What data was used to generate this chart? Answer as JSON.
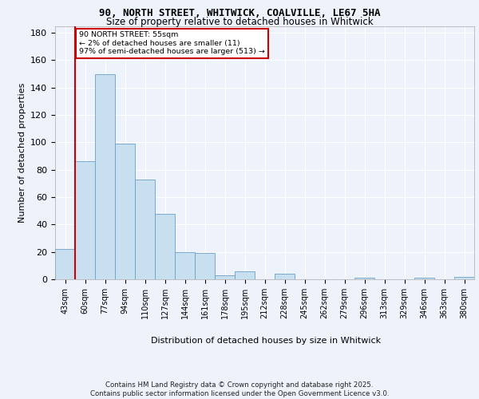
{
  "title1": "90, NORTH STREET, WHITWICK, COALVILLE, LE67 5HA",
  "title2": "Size of property relative to detached houses in Whitwick",
  "xlabel": "Distribution of detached houses by size in Whitwick",
  "ylabel": "Number of detached properties",
  "bin_labels": [
    "43sqm",
    "60sqm",
    "77sqm",
    "94sqm",
    "110sqm",
    "127sqm",
    "144sqm",
    "161sqm",
    "178sqm",
    "195sqm",
    "212sqm",
    "228sqm",
    "245sqm",
    "262sqm",
    "279sqm",
    "296sqm",
    "313sqm",
    "329sqm",
    "346sqm",
    "363sqm",
    "380sqm"
  ],
  "bar_heights": [
    22,
    86,
    150,
    99,
    73,
    48,
    20,
    19,
    3,
    6,
    0,
    4,
    0,
    0,
    0,
    1,
    0,
    0,
    1,
    0,
    2
  ],
  "bar_color": "#c8dff0",
  "bar_edge_color": "#6aa0c8",
  "vline_color": "#cc0000",
  "annotation_text": "90 NORTH STREET: 55sqm\n← 2% of detached houses are smaller (11)\n97% of semi-detached houses are larger (513) →",
  "annotation_box_color": "#cc0000",
  "footer": "Contains HM Land Registry data © Crown copyright and database right 2025.\nContains public sector information licensed under the Open Government Licence v3.0.",
  "ylim": [
    0,
    185
  ],
  "yticks": [
    0,
    20,
    40,
    60,
    80,
    100,
    120,
    140,
    160,
    180
  ],
  "background_color": "#eef2fb",
  "grid_color": "#ffffff",
  "vline_x_index": 0.5
}
